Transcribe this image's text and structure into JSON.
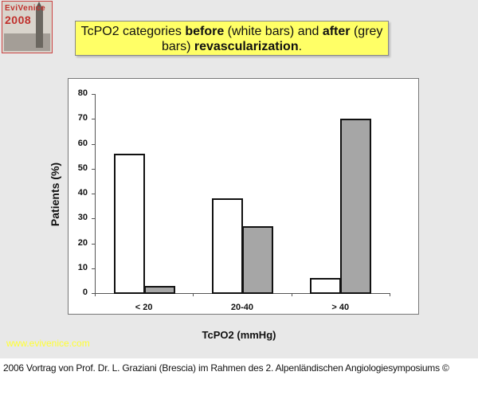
{
  "logo": {
    "line1": "EviVenice",
    "line2": "2008"
  },
  "title": {
    "part1": "TcPO2 categories ",
    "bold1": "before",
    "part2": " (white bars) and ",
    "bold2": "after",
    "part3": " (grey bars) ",
    "bold3": "revascularization",
    "part4": "."
  },
  "watermark_url": "www.evivenice.com",
  "footer": "2006 Vortrag von Prof. Dr. L. Graziani (Brescia) im Rahmen des 2. Alpenländischen Angiologiesymposiums ©",
  "colors": {
    "title_bg": "#ffff66",
    "before_bar": "#ffffff",
    "after_bar": "#a6a6a6",
    "slide_bg": "#e8e8e8",
    "url_color": "#ffff33"
  },
  "chart_data": {
    "type": "bar",
    "title": "TcPO2 categories before (white bars) and after (grey bars) revascularization.",
    "xlabel": "TcPO2 (mmHg)",
    "ylabel": "Patients (%)",
    "categories": [
      "< 20",
      "20-40",
      "> 40"
    ],
    "series": [
      {
        "name": "before (white bars)",
        "color": "#ffffff",
        "values": [
          56,
          38,
          6
        ]
      },
      {
        "name": "after (grey bars)",
        "color": "#a6a6a6",
        "values": [
          3,
          27,
          70
        ]
      }
    ],
    "ylim": [
      0,
      80
    ],
    "yticks": [
      "0",
      "10",
      "20",
      "30",
      "40",
      "50",
      "60",
      "70",
      "80"
    ],
    "grid": false,
    "legend": "none"
  }
}
